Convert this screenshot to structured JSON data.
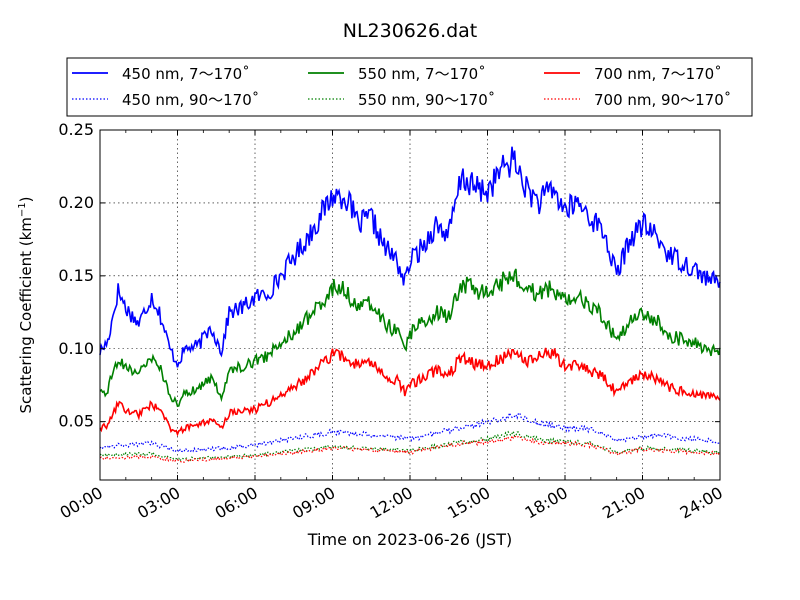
{
  "chart_data": {
    "type": "line",
    "title": "NL230626.dat",
    "xlabel": "Time on 2023-06-26 (JST)",
    "ylabel": "Scattering Coefficient (km",
    "ylabel_sup": "−1",
    "ylabel_close": ")",
    "x_unit": "hour",
    "xlim": [
      0,
      24
    ],
    "ylim": [
      0.01,
      0.25
    ],
    "x_ticks": [
      0,
      3,
      6,
      9,
      12,
      15,
      18,
      21,
      24
    ],
    "x_tick_labels": [
      "00:00",
      "03:00",
      "06:00",
      "09:00",
      "12:00",
      "15:00",
      "18:00",
      "21:00",
      "24:00"
    ],
    "y_ticks": [
      0.05,
      0.1,
      0.15,
      0.2,
      0.25
    ],
    "y_tick_labels": [
      "0.05",
      "0.10",
      "0.15",
      "0.20",
      "0.25"
    ],
    "grid": true,
    "legend_position": "top, above plot",
    "legend_ncol": 3,
    "series": [
      {
        "name": "450 nm, 7～170˚",
        "color": "#0000ff",
        "style": "solid",
        "x": [
          0,
          0.3,
          0.7,
          1.0,
          1.5,
          2.0,
          2.3,
          2.7,
          3.0,
          3.3,
          3.8,
          4.3,
          4.7,
          5.0,
          5.5,
          6.0,
          6.5,
          7.0,
          7.5,
          8.0,
          8.5,
          9.0,
          9.5,
          10.0,
          10.5,
          11.0,
          11.5,
          11.8,
          12.0,
          12.5,
          13.0,
          13.5,
          14.0,
          14.5,
          15.0,
          15.5,
          16.0,
          16.5,
          17.0,
          17.5,
          18.0,
          18.5,
          19.0,
          19.5,
          20.0,
          20.5,
          21.0,
          21.5,
          22.0,
          22.5,
          23.0,
          23.5,
          24.0
        ],
        "values": [
          0.098,
          0.105,
          0.14,
          0.128,
          0.117,
          0.136,
          0.125,
          0.1,
          0.09,
          0.1,
          0.102,
          0.115,
          0.098,
          0.125,
          0.128,
          0.135,
          0.138,
          0.15,
          0.163,
          0.175,
          0.19,
          0.205,
          0.205,
          0.185,
          0.19,
          0.17,
          0.16,
          0.145,
          0.16,
          0.17,
          0.185,
          0.178,
          0.218,
          0.21,
          0.208,
          0.222,
          0.23,
          0.21,
          0.2,
          0.21,
          0.195,
          0.2,
          0.19,
          0.18,
          0.15,
          0.175,
          0.185,
          0.178,
          0.165,
          0.16,
          0.155,
          0.148,
          0.145
        ]
      },
      {
        "name": "450 nm, 90～170˚",
        "color": "#0000ff",
        "style": "dotted",
        "x": [
          0,
          2.0,
          3.0,
          4.0,
          5.0,
          6.0,
          8.0,
          9.0,
          10.0,
          12.0,
          14.0,
          15.0,
          16.0,
          17.0,
          18.0,
          19.0,
          20.0,
          21.0,
          22.0,
          23.0,
          24.0
        ],
        "values": [
          0.033,
          0.035,
          0.03,
          0.031,
          0.032,
          0.034,
          0.04,
          0.043,
          0.042,
          0.038,
          0.046,
          0.05,
          0.055,
          0.049,
          0.046,
          0.045,
          0.037,
          0.04,
          0.04,
          0.038,
          0.036
        ]
      },
      {
        "name": "550 nm, 7～170˚",
        "color": "#008000",
        "style": "solid",
        "x": [
          0,
          0.3,
          0.7,
          1.0,
          1.5,
          2.0,
          2.3,
          2.7,
          3.0,
          3.3,
          3.8,
          4.3,
          4.7,
          5.0,
          5.5,
          6.0,
          6.5,
          7.0,
          7.5,
          8.0,
          8.5,
          9.0,
          9.5,
          10.0,
          10.5,
          11.0,
          11.5,
          11.8,
          12.0,
          12.5,
          13.0,
          13.5,
          14.0,
          14.5,
          15.0,
          15.5,
          16.0,
          16.5,
          17.0,
          17.5,
          18.0,
          18.5,
          19.0,
          19.5,
          20.0,
          20.5,
          21.0,
          21.5,
          22.0,
          22.5,
          23.0,
          23.5,
          24.0
        ],
        "values": [
          0.068,
          0.072,
          0.094,
          0.088,
          0.082,
          0.094,
          0.088,
          0.068,
          0.062,
          0.07,
          0.072,
          0.08,
          0.068,
          0.085,
          0.088,
          0.092,
          0.095,
          0.104,
          0.112,
          0.12,
          0.13,
          0.142,
          0.14,
          0.128,
          0.132,
          0.118,
          0.112,
          0.1,
          0.11,
          0.118,
          0.125,
          0.122,
          0.145,
          0.14,
          0.138,
          0.145,
          0.152,
          0.14,
          0.138,
          0.142,
          0.132,
          0.135,
          0.128,
          0.122,
          0.105,
          0.118,
          0.125,
          0.12,
          0.11,
          0.106,
          0.104,
          0.1,
          0.097
        ]
      },
      {
        "name": "550 nm, 90～170˚",
        "color": "#008000",
        "style": "dotted",
        "x": [
          0,
          2.0,
          3.0,
          4.0,
          5.0,
          6.0,
          8.0,
          9.0,
          10.0,
          12.0,
          14.0,
          15.0,
          16.0,
          17.0,
          18.0,
          19.0,
          20.0,
          21.0,
          22.0,
          23.0,
          24.0
        ],
        "values": [
          0.027,
          0.028,
          0.024,
          0.025,
          0.026,
          0.027,
          0.031,
          0.033,
          0.032,
          0.03,
          0.036,
          0.038,
          0.042,
          0.038,
          0.036,
          0.035,
          0.029,
          0.032,
          0.031,
          0.03,
          0.029
        ]
      },
      {
        "name": "700 nm, 7～170˚",
        "color": "#ff0000",
        "style": "solid",
        "x": [
          0,
          0.3,
          0.7,
          1.0,
          1.5,
          2.0,
          2.3,
          2.7,
          3.0,
          3.3,
          3.8,
          4.3,
          4.7,
          5.0,
          5.5,
          6.0,
          6.5,
          7.0,
          7.5,
          8.0,
          8.5,
          9.0,
          9.5,
          10.0,
          10.5,
          11.0,
          11.5,
          11.8,
          12.0,
          12.5,
          13.0,
          13.5,
          14.0,
          14.5,
          15.0,
          15.5,
          16.0,
          16.5,
          17.0,
          17.5,
          18.0,
          18.5,
          19.0,
          19.5,
          20.0,
          20.5,
          21.0,
          21.5,
          22.0,
          22.5,
          23.0,
          23.5,
          24.0
        ],
        "values": [
          0.045,
          0.048,
          0.062,
          0.058,
          0.055,
          0.062,
          0.058,
          0.046,
          0.042,
          0.046,
          0.047,
          0.052,
          0.045,
          0.056,
          0.058,
          0.058,
          0.063,
          0.068,
          0.074,
          0.08,
          0.088,
          0.096,
          0.095,
          0.088,
          0.09,
          0.082,
          0.078,
          0.07,
          0.075,
          0.08,
          0.085,
          0.082,
          0.095,
          0.09,
          0.088,
          0.093,
          0.098,
          0.09,
          0.095,
          0.098,
          0.088,
          0.09,
          0.085,
          0.08,
          0.07,
          0.078,
          0.083,
          0.08,
          0.074,
          0.071,
          0.07,
          0.068,
          0.066
        ]
      },
      {
        "name": "700 nm, 90～170˚",
        "color": "#ff0000",
        "style": "dotted",
        "x": [
          0,
          2.0,
          3.0,
          4.0,
          5.0,
          6.0,
          8.0,
          9.0,
          10.0,
          12.0,
          14.0,
          15.0,
          16.0,
          17.0,
          18.0,
          19.0,
          20.0,
          21.0,
          22.0,
          23.0,
          24.0
        ],
        "values": [
          0.025,
          0.026,
          0.023,
          0.024,
          0.025,
          0.026,
          0.03,
          0.032,
          0.031,
          0.029,
          0.035,
          0.036,
          0.039,
          0.036,
          0.035,
          0.034,
          0.028,
          0.031,
          0.03,
          0.029,
          0.028
        ]
      }
    ]
  }
}
